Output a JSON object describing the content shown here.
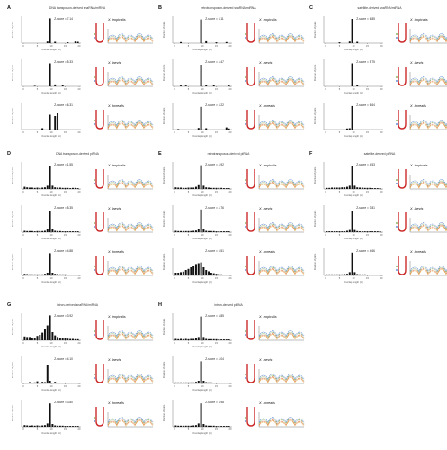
{
  "figure": {
    "panels": [
      {
        "letter": "A",
        "title": "DNA transposon-derived snaRNA/miRNA",
        "rows": [
          {
            "species": "X. tropicalis",
            "z": "Z-score = 7.14",
            "bars": [
              0,
              0,
              0,
              0,
              0,
              0,
              0,
              0,
              0,
              0.06,
              0.92,
              0,
              0.05,
              0,
              0,
              0,
              0,
              0.03,
              0,
              0,
              0.06,
              0.05
            ]
          },
          {
            "species": "X. laevis",
            "z": "Z-score = 5.33",
            "bars": [
              0,
              0,
              0,
              0,
              0.02,
              0,
              0,
              0,
              0,
              0,
              0.85,
              0,
              0.07,
              0,
              0,
              0.05,
              0,
              0,
              0,
              0,
              0,
              0
            ]
          },
          {
            "species": "X. borealis",
            "z": "Z-score = 6.31",
            "bars": [
              0,
              0,
              0,
              0,
              0,
              0,
              0,
              0.05,
              0,
              0,
              0.55,
              0,
              0.5,
              0.6,
              0,
              0,
              0,
              0,
              0,
              0,
              0,
              0
            ]
          }
        ]
      },
      {
        "letter": "B",
        "title": "retrotransposon-derived snaRNA/miRNA",
        "rows": [
          {
            "species": "X. tropicalis",
            "z": "Z-score = 5.11",
            "bars": [
              0,
              0,
              0.04,
              0,
              0,
              0,
              0,
              0,
              0,
              0,
              0.88,
              0,
              0.07,
              0,
              0,
              0,
              0.03,
              0,
              0,
              0,
              0.04,
              0
            ]
          },
          {
            "species": "X. laevis",
            "z": "Z-score = 4.47",
            "bars": [
              0,
              0,
              0.03,
              0,
              0.03,
              0,
              0,
              0,
              0,
              0,
              0.8,
              0,
              0.06,
              0,
              0,
              0.04,
              0,
              0,
              0,
              0,
              0,
              0.03
            ]
          },
          {
            "species": "X. borealis",
            "z": "Z-score = 5.22",
            "bars": [
              0,
              0.02,
              0,
              0,
              0,
              0,
              0,
              0,
              0,
              0.06,
              0.84,
              0,
              0.05,
              0,
              0,
              0,
              0,
              0,
              0,
              0,
              0.08,
              0.04
            ]
          }
        ]
      },
      {
        "letter": "C",
        "title": "satellite-derived snaRNA/miRNA",
        "rows": [
          {
            "species": "X. tropicalis",
            "z": "Z-score = 6.85",
            "bars": [
              0,
              0,
              0,
              0,
              0,
              0.03,
              0,
              0,
              0,
              0.06,
              0.9,
              0,
              0.05,
              0,
              0,
              0,
              0,
              0,
              0,
              0,
              0,
              0
            ]
          },
          {
            "species": "X. laevis",
            "z": "Z-score = 5.75",
            "bars": [
              0,
              0,
              0,
              0,
              0,
              0,
              0,
              0,
              0,
              0,
              0.85,
              0,
              0.05,
              0,
              0,
              0,
              0,
              0,
              0,
              0,
              0,
              0
            ]
          },
          {
            "species": "X. borealis",
            "z": "Z-score = 6.64",
            "bars": [
              0,
              0,
              0,
              0,
              0,
              0,
              0,
              0,
              0.04,
              0.05,
              0.87,
              0,
              0,
              0,
              0,
              0,
              0,
              0,
              0,
              0,
              0,
              0
            ]
          }
        ]
      },
      {
        "letter": "D",
        "title": "DNA transposon-derived piRNA",
        "rows": [
          {
            "species": "X. tropicalis",
            "z": "Z-score = 1.55",
            "bars": [
              0.08,
              0.06,
              0.05,
              0.05,
              0.04,
              0.05,
              0.04,
              0.05,
              0.06,
              0.12,
              0.85,
              0.12,
              0.06,
              0.05,
              0.05,
              0.04,
              0.04,
              0.04,
              0.03,
              0.04,
              0.04,
              0.03
            ]
          },
          {
            "species": "X. laevis",
            "z": "Z-score = 5.35",
            "bars": [
              0.05,
              0.04,
              0.04,
              0.04,
              0.03,
              0.04,
              0.04,
              0.04,
              0.05,
              0.1,
              0.8,
              0.1,
              0.05,
              0.04,
              0.04,
              0.03,
              0.03,
              0.03,
              0.03,
              0.03,
              0.03,
              0.03
            ]
          },
          {
            "species": "X. borealis",
            "z": "Z-score = 4.88",
            "bars": [
              0.06,
              0.05,
              0.04,
              0.04,
              0.04,
              0.04,
              0.04,
              0.04,
              0.06,
              0.1,
              0.82,
              0.1,
              0.06,
              0.05,
              0.04,
              0.04,
              0.04,
              0.03,
              0.03,
              0.03,
              0.03,
              0.03
            ]
          }
        ]
      },
      {
        "letter": "E",
        "title": "retrotransposon-derived piRNA",
        "rows": [
          {
            "species": "X. tropicalis",
            "z": "Z-score = 4.92",
            "bars": [
              0.06,
              0.05,
              0.05,
              0.04,
              0.04,
              0.05,
              0.05,
              0.05,
              0.08,
              0.14,
              0.88,
              0.12,
              0.06,
              0.05,
              0.04,
              0.04,
              0.04,
              0.04,
              0.04,
              0.03,
              0.03,
              0.03
            ]
          },
          {
            "species": "X. laevis",
            "z": "Z-score = 4.76",
            "bars": [
              0.05,
              0.04,
              0.04,
              0.04,
              0.04,
              0.04,
              0.04,
              0.05,
              0.06,
              0.12,
              0.84,
              0.11,
              0.05,
              0.04,
              0.04,
              0.04,
              0.03,
              0.03,
              0.03,
              0.03,
              0.03,
              0.03
            ]
          },
          {
            "species": "X. borealis",
            "z": "Z-score = 5.51",
            "bars": [
              0.1,
              0.1,
              0.12,
              0.14,
              0.2,
              0.24,
              0.3,
              0.36,
              0.42,
              0.45,
              0.48,
              0.3,
              0.2,
              0.15,
              0.1,
              0.08,
              0.06,
              0.05,
              0.04,
              0.03,
              0.03,
              0.03
            ]
          }
        ]
      },
      {
        "letter": "F",
        "title": "satellite-derived piRNA",
        "rows": [
          {
            "species": "X. tropicalis",
            "z": "Z-score = 4.53",
            "bars": [
              0.04,
              0.04,
              0.05,
              0.05,
              0.05,
              0.05,
              0.06,
              0.06,
              0.08,
              0.12,
              0.86,
              0.12,
              0.06,
              0.05,
              0.05,
              0.04,
              0.04,
              0.04,
              0.03,
              0.03,
              0.03,
              0.03
            ]
          },
          {
            "species": "X. laevis",
            "z": "Z-score = 3.81",
            "bars": [
              0.03,
              0.03,
              0.03,
              0.03,
              0.03,
              0.03,
              0.03,
              0.03,
              0.05,
              0.08,
              0.8,
              0.08,
              0.04,
              0.03,
              0.03,
              0.03,
              0.03,
              0.03,
              0.03,
              0.03,
              0.03,
              0.03
            ]
          },
          {
            "species": "X. borealis",
            "z": "Z-score = 4.66",
            "bars": [
              0.04,
              0.04,
              0.04,
              0.04,
              0.04,
              0.04,
              0.04,
              0.05,
              0.06,
              0.12,
              0.84,
              0.12,
              0.05,
              0.04,
              0.04,
              0.04,
              0.03,
              0.03,
              0.03,
              0.03,
              0.03,
              0.03
            ]
          }
        ]
      },
      {
        "letter": "G",
        "title": "intron-derived snaRNA/miRNA",
        "rows": [
          {
            "species": "X. tropicalis",
            "z": "Z-score = 3.92",
            "bars": [
              0.14,
              0.12,
              0.12,
              0.1,
              0.1,
              0.16,
              0.2,
              0.28,
              0.4,
              0.55,
              0.92,
              0.3,
              0.18,
              0.12,
              0.1,
              0.08,
              0.07,
              0.06,
              0.05,
              0.05,
              0.04,
              0.04
            ]
          },
          {
            "species": "X. laevis",
            "z": "Z-score = 4.10",
            "bars": [
              0,
              0,
              0.05,
              0,
              0.04,
              0.08,
              0,
              0.06,
              0.05,
              0.7,
              0.1,
              0,
              0.06,
              0,
              0,
              0,
              0,
              0,
              0,
              0,
              0,
              0
            ]
          },
          {
            "species": "X. borealis",
            "z": "Z-score = 3.80",
            "bars": [
              0.06,
              0.05,
              0.04,
              0.05,
              0.04,
              0.05,
              0.04,
              0.05,
              0.06,
              0.12,
              0.86,
              0.1,
              0.05,
              0.04,
              0.04,
              0.04,
              0.03,
              0.03,
              0.03,
              0.03,
              0.03,
              0.03
            ]
          }
        ]
      },
      {
        "letter": "H",
        "title": "intron-derived piRNA",
        "rows": [
          {
            "species": "X. tropicalis",
            "z": "Z-score = 3.85",
            "bars": [
              0.05,
              0.04,
              0.05,
              0.04,
              0.05,
              0.04,
              0.05,
              0.05,
              0.07,
              0.12,
              0.88,
              0.12,
              0.05,
              0.04,
              0.04,
              0.04,
              0.04,
              0.03,
              0.03,
              0.03,
              0.03,
              0.03
            ]
          },
          {
            "species": "X. laevis",
            "z": "Z-score = 4.04",
            "bars": [
              0.04,
              0.04,
              0.04,
              0.04,
              0.04,
              0.04,
              0.04,
              0.04,
              0.06,
              0.1,
              0.82,
              0.1,
              0.05,
              0.04,
              0.04,
              0.03,
              0.03,
              0.03,
              0.03,
              0.03,
              0.03,
              0.03
            ]
          },
          {
            "species": "X. borealis",
            "z": "Z-score = 3.98",
            "bars": [
              0.05,
              0.04,
              0.04,
              0.04,
              0.04,
              0.04,
              0.04,
              0.05,
              0.06,
              0.12,
              0.86,
              0.1,
              0.05,
              0.04,
              0.04,
              0.04,
              0.03,
              0.03,
              0.03,
              0.03,
              0.03,
              0.03
            ]
          }
        ]
      }
    ],
    "axis_text": {
      "y_label": "Fraction of pairs",
      "x_label": "Overlap length (nt)",
      "x_ticks": [
        "0",
        "5",
        "10",
        "15",
        "20"
      ]
    },
    "colors": {
      "bars": "#111111",
      "hairpin": "#cc2a2a",
      "trace_a": "#d84b2a",
      "trace_b": "#6a9f3a",
      "trace_c": "#3b6fc8",
      "trace_d": "#e3a428"
    }
  }
}
